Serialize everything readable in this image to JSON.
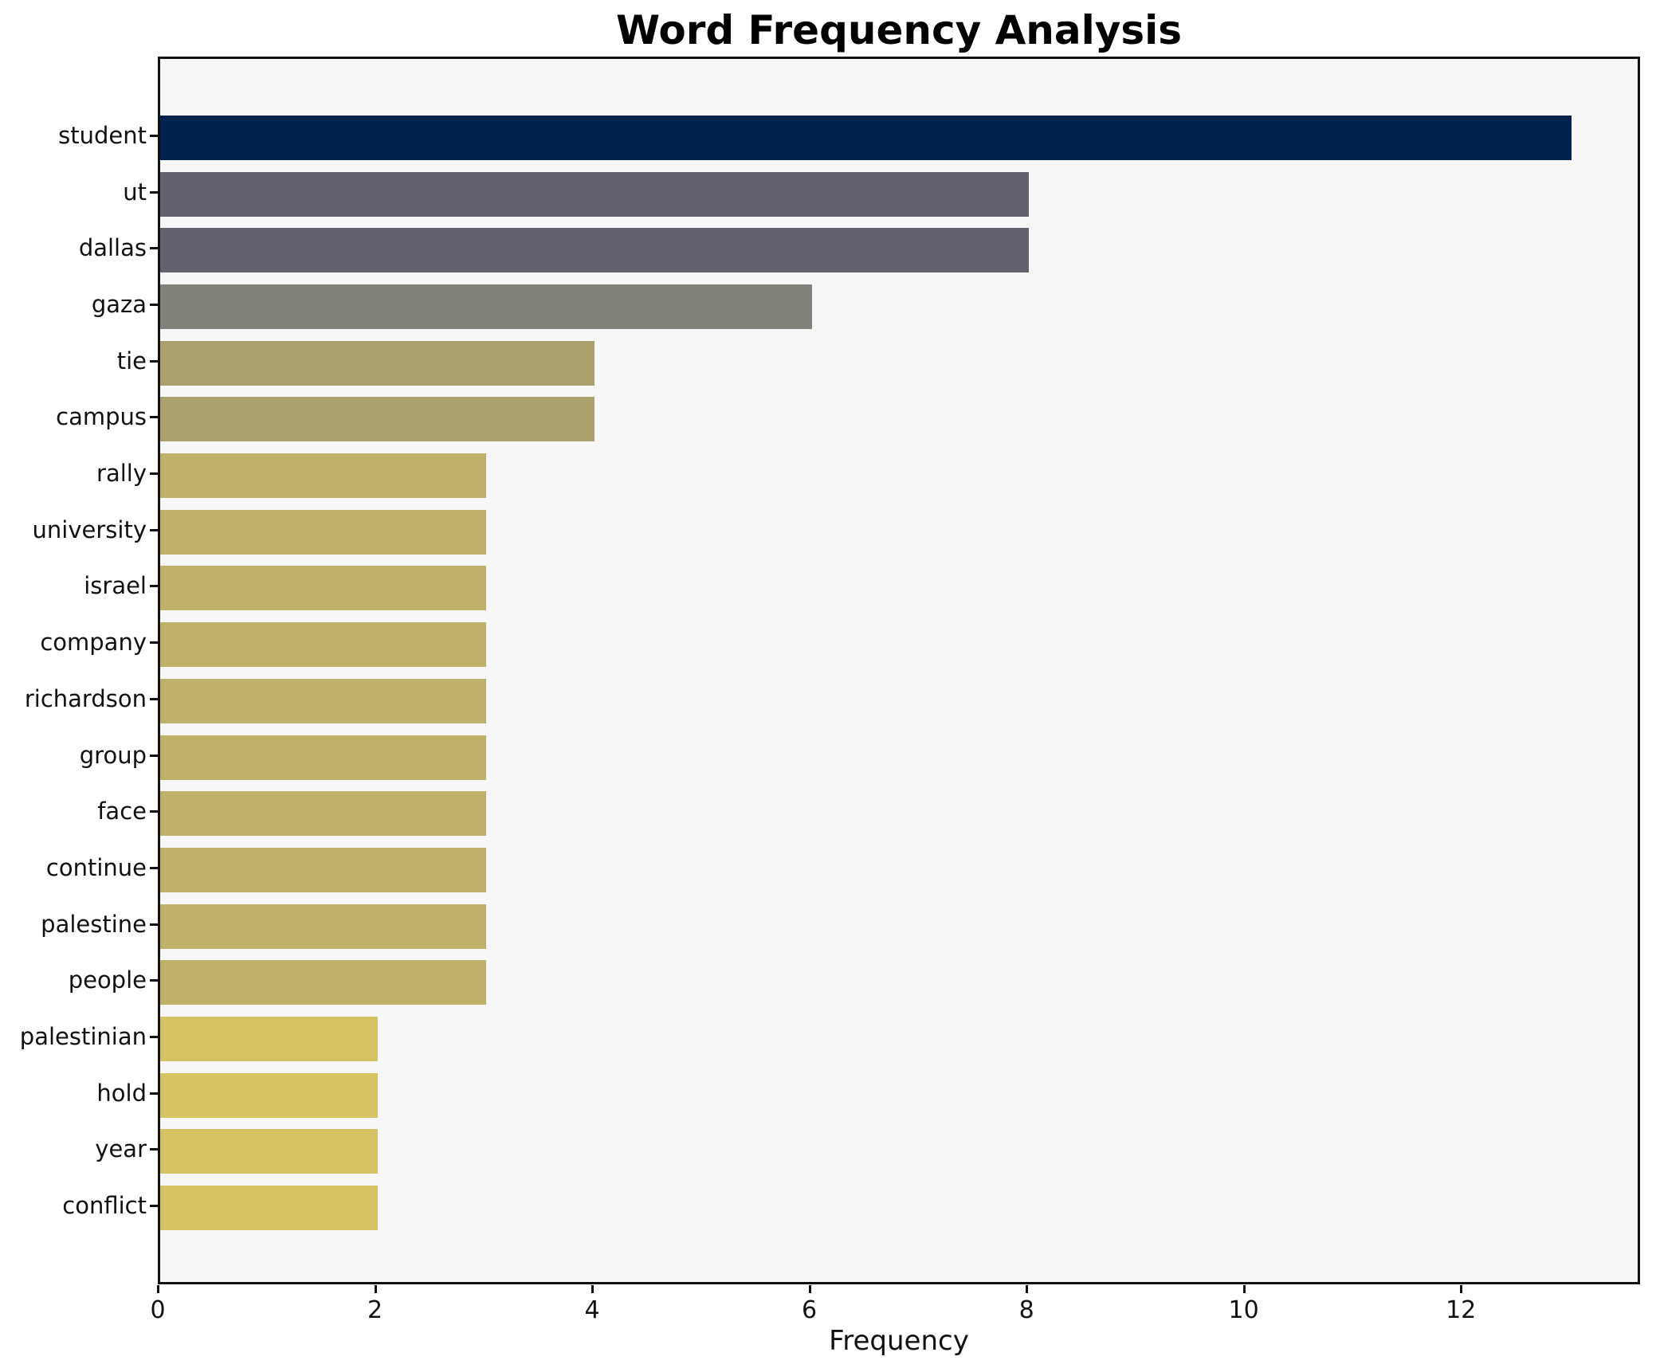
{
  "chart_data": {
    "type": "bar",
    "orientation": "horizontal",
    "title": "Word Frequency Analysis",
    "xlabel": "Frequency",
    "ylabel": "",
    "categories": [
      "student",
      "ut",
      "dallas",
      "gaza",
      "tie",
      "campus",
      "rally",
      "university",
      "israel",
      "company",
      "richardson",
      "group",
      "face",
      "continue",
      "palestine",
      "people",
      "palestinian",
      "hold",
      "year",
      "conflict"
    ],
    "values": [
      13,
      8,
      8,
      6,
      4,
      4,
      3,
      3,
      3,
      3,
      3,
      3,
      3,
      3,
      3,
      3,
      2,
      2,
      2,
      2
    ],
    "bar_colors": [
      "#00224e",
      "#62626e",
      "#62626e",
      "#82817a",
      "#aba06e",
      "#aba06e",
      "#bfb16a",
      "#bfb16a",
      "#bfb16a",
      "#bfb16a",
      "#bfb16a",
      "#bfb16a",
      "#bfb16a",
      "#bfb16a",
      "#bfb16a",
      "#bfb16a",
      "#d4c263",
      "#d4c263",
      "#d4c263",
      "#d4c263"
    ],
    "xticks": [
      "0",
      "2",
      "4",
      "6",
      "8",
      "10",
      "12"
    ],
    "xlim": [
      0,
      13.65
    ],
    "grid": false,
    "legend": "none",
    "colors": {
      "figure_background": "#ffffff",
      "plot_background": "#f7f7f8",
      "spine": "#111111",
      "text": "#111111"
    }
  }
}
